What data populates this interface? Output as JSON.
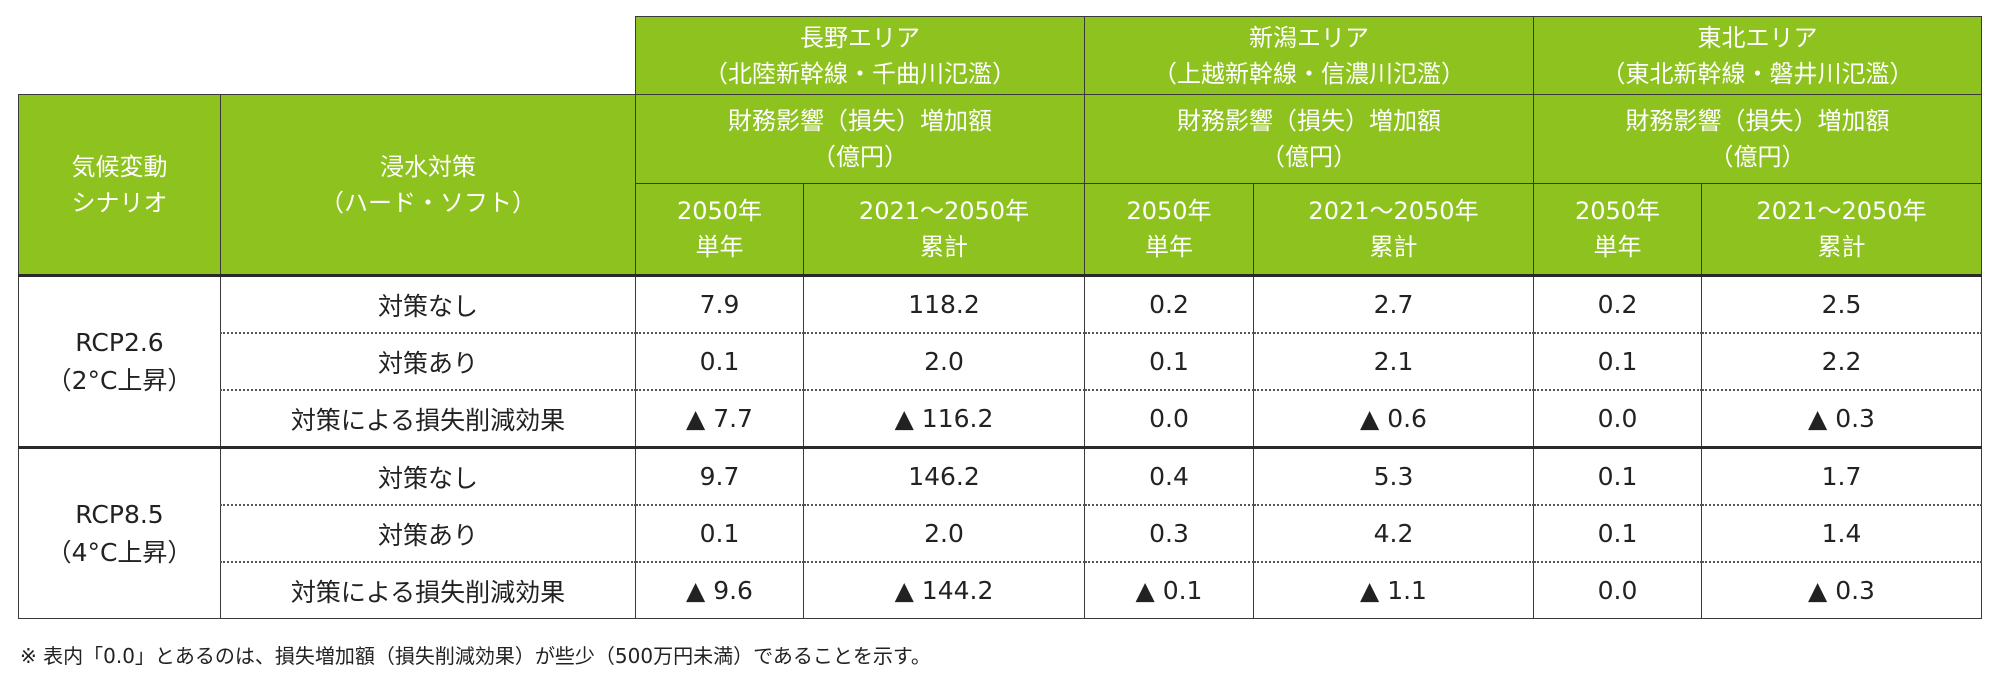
{
  "header": {
    "scenario_label": "気候変動\nシナリオ",
    "measure_label": "浸水対策\n（ハード・ソフト）",
    "impact_label": "財務影響（損失）増加額\n（億円）",
    "single_year_label": "2050年\n単年",
    "cumulative_label": "2021～2050年\n累計",
    "areas": [
      {
        "name": "長野エリア",
        "sub": "（北陸新幹線・千曲川氾濫）"
      },
      {
        "name": "新潟エリア",
        "sub": "（上越新幹線・信濃川氾濫）"
      },
      {
        "name": "東北エリア",
        "sub": "（東北新幹線・磐井川氾濫）"
      }
    ]
  },
  "groups": [
    {
      "scenario": "RCP2.6\n（2°C上昇）",
      "rows": [
        {
          "measure": "対策なし",
          "values": [
            "7.9",
            "118.2",
            "0.2",
            "2.7",
            "0.2",
            "2.5"
          ]
        },
        {
          "measure": "対策あり",
          "values": [
            "0.1",
            "2.0",
            "0.1",
            "2.1",
            "0.1",
            "2.2"
          ]
        },
        {
          "measure": "対策による損失削減効果",
          "values": [
            "▲ 7.7",
            "▲ 116.2",
            "0.0",
            "▲ 0.6",
            "0.0",
            "▲ 0.3"
          ]
        }
      ]
    },
    {
      "scenario": "RCP8.5\n（4°C上昇）",
      "rows": [
        {
          "measure": "対策なし",
          "values": [
            "9.7",
            "146.2",
            "0.4",
            "5.3",
            "0.1",
            "1.7"
          ]
        },
        {
          "measure": "対策あり",
          "values": [
            "0.1",
            "2.0",
            "0.3",
            "4.2",
            "0.1",
            "1.4"
          ]
        },
        {
          "measure": "対策による損失削減効果",
          "values": [
            "▲ 9.6",
            "▲ 144.2",
            "▲ 0.1",
            "▲ 1.1",
            "0.0",
            "▲ 0.3"
          ]
        }
      ]
    }
  ],
  "footnote": "※ 表内「0.0」とあるのは、損失増加額（損失削減効果）が些少（500万円未満）であることを示す。",
  "colors": {
    "header_bg": "#8dc21f",
    "header_text": "#ffffff",
    "border": "#3a3a3a"
  }
}
